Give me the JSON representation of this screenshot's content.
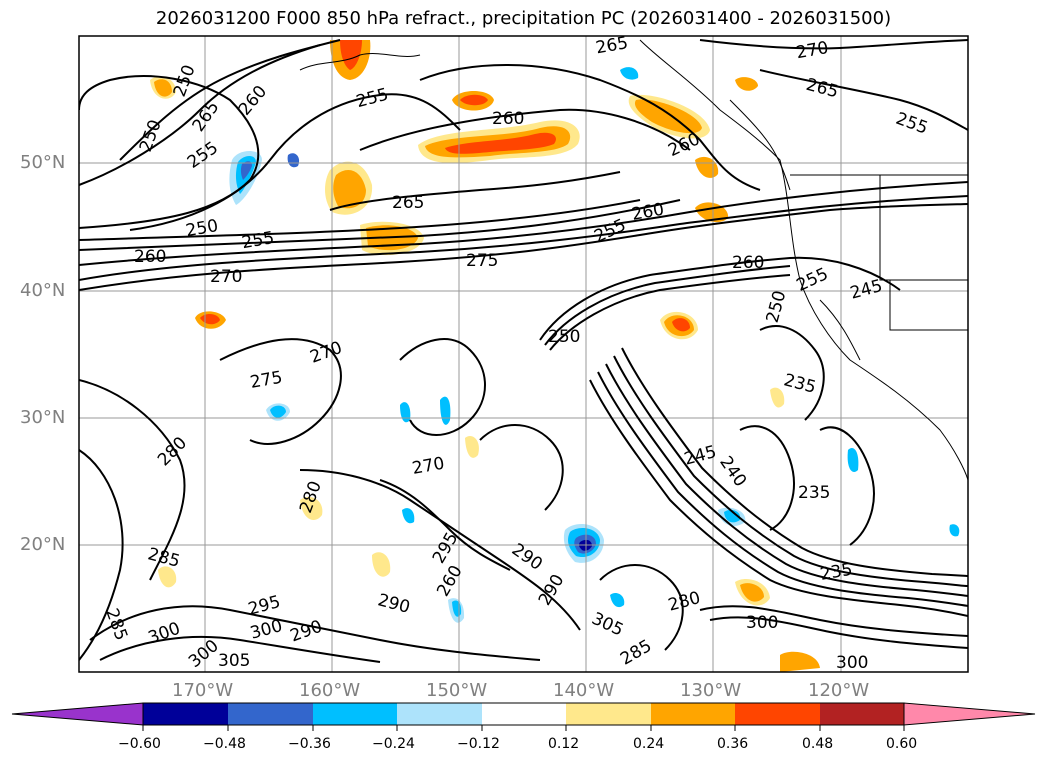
{
  "title": "2026031200 F000 850 hPa refract., precipitation PC (2026031400 - 2026031500)",
  "map": {
    "lat_labels": [
      "50°N",
      "40°N",
      "30°N",
      "20°N"
    ],
    "lon_labels": [
      "170°W",
      "160°W",
      "150°W",
      "140°W",
      "130°W",
      "120°W"
    ],
    "contour_labels": [
      "265",
      "250",
      "260",
      "255",
      "255",
      "260",
      "265",
      "270",
      "265",
      "250",
      "255",
      "260",
      "265",
      "250",
      "255",
      "260",
      "270",
      "275",
      "255",
      "260",
      "260",
      "255",
      "245",
      "270",
      "275",
      "280",
      "250",
      "235",
      "245",
      "240",
      "235",
      "235",
      "285",
      "285",
      "300",
      "305",
      "295",
      "290",
      "300",
      "270",
      "280",
      "295",
      "290",
      "280",
      "285",
      "290",
      "300",
      "290",
      "300",
      "305",
      "300",
      "260",
      "250"
    ]
  },
  "colorbar": {
    "tick_labels": [
      "−0.60",
      "−0.48",
      "−0.36",
      "−0.24",
      "−0.12",
      "0.12",
      "0.24",
      "0.36",
      "0.48",
      "0.60"
    ],
    "colors": [
      "#9933cc",
      "#000099",
      "#3366cc",
      "#00bfff",
      "#ade3fb",
      "#ffffff",
      "#ffe88c",
      "#ffa500",
      "#ff4500",
      "#b22222",
      "#ff88aa",
      "#ff88aa"
    ]
  }
}
